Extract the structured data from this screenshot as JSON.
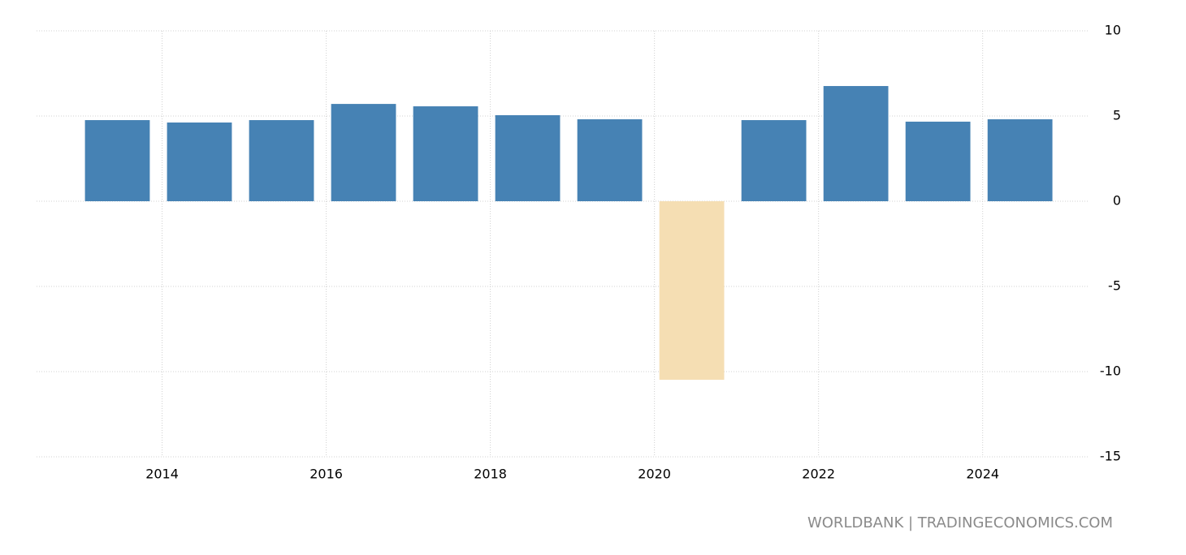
{
  "chart_data": {
    "type": "bar",
    "x": [
      2013,
      2014,
      2015,
      2016,
      2017,
      2018,
      2019,
      2020,
      2021,
      2022,
      2023,
      2024
    ],
    "values": [
      4.76,
      4.62,
      4.76,
      5.71,
      5.57,
      5.05,
      4.81,
      -10.48,
      4.76,
      6.76,
      4.67,
      4.81
    ],
    "color": "#4682b4",
    "negative_color": "#f5deb3",
    "xlim": [
      2012.47,
      2025.29
    ],
    "xticks": [
      2014,
      2016,
      2018,
      2020,
      2022,
      2024
    ],
    "ylim": [
      -15,
      10
    ],
    "yticks": [
      -15,
      -10,
      -5,
      0,
      5,
      10
    ],
    "grid": true,
    "source": "WORLDBANK | TRADINGECONOMICS.COM"
  }
}
